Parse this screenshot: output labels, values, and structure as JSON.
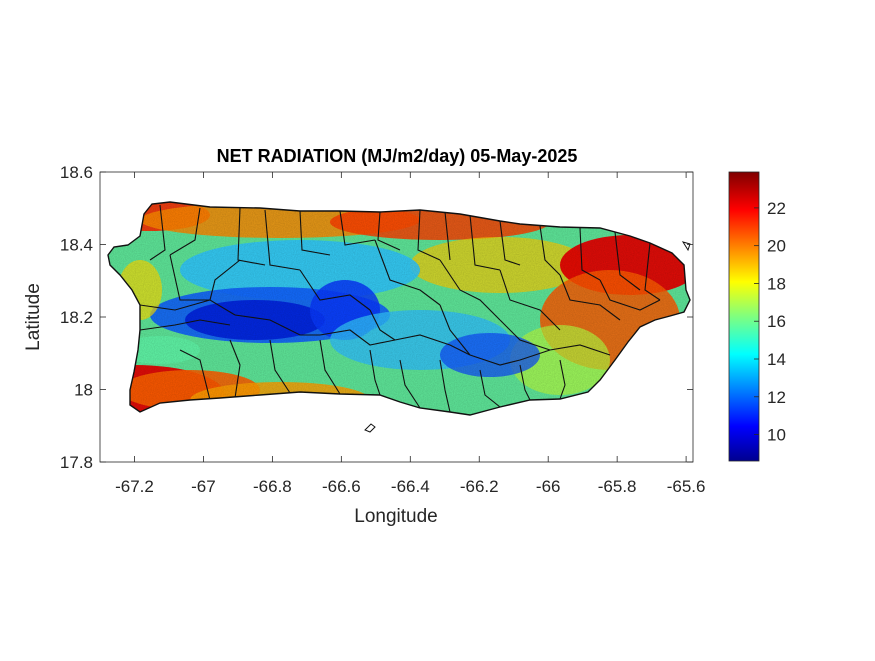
{
  "chart_data": {
    "type": "heatmap",
    "title": "NET RADIATION (MJ/m2/day) 05-May-2025",
    "xlabel": "Longitude",
    "ylabel": "Latitude",
    "xlim": [
      -67.3,
      -65.58
    ],
    "ylim": [
      17.8,
      18.6
    ],
    "xticks": [
      -67.2,
      -67,
      -66.8,
      -66.6,
      -66.4,
      -66.2,
      -66,
      -65.8,
      -65.6
    ],
    "xtick_labels": [
      "-67.2",
      "-67",
      "-66.8",
      "-66.6",
      "-66.4",
      "-66.2",
      "-66",
      "-65.8",
      "-65.6"
    ],
    "yticks": [
      17.8,
      18,
      18.2,
      18.4,
      18.6
    ],
    "ytick_labels": [
      "17.8",
      "18",
      "18.2",
      "18.4",
      "18.6"
    ],
    "colorbar": {
      "range": [
        8.6,
        23.9
      ],
      "ticks": [
        10,
        12,
        14,
        16,
        18,
        20,
        22
      ],
      "tick_labels": [
        "10",
        "12",
        "14",
        "16",
        "18",
        "20",
        "22"
      ],
      "colormap": "jet"
    },
    "field_samples": [
      {
        "lon": -67.15,
        "lat": 17.97,
        "value": 23
      },
      {
        "lon": -67.05,
        "lat": 18.47,
        "value": 22
      },
      {
        "lon": -66.85,
        "lat": 18.2,
        "value": 10
      },
      {
        "lon": -66.65,
        "lat": 18.2,
        "value": 10.5
      },
      {
        "lon": -66.9,
        "lat": 18.32,
        "value": 12
      },
      {
        "lon": -66.2,
        "lat": 18.1,
        "value": 11
      },
      {
        "lon": -65.9,
        "lat": 18.4,
        "value": 22.5
      },
      {
        "lon": -65.7,
        "lat": 18.25,
        "value": 21.5
      },
      {
        "lon": -66.4,
        "lat": 18.45,
        "value": 21
      },
      {
        "lon": -66.5,
        "lat": 18.0,
        "value": 18
      },
      {
        "lon": -67.1,
        "lat": 18.25,
        "value": 16
      }
    ],
    "grid": false
  }
}
